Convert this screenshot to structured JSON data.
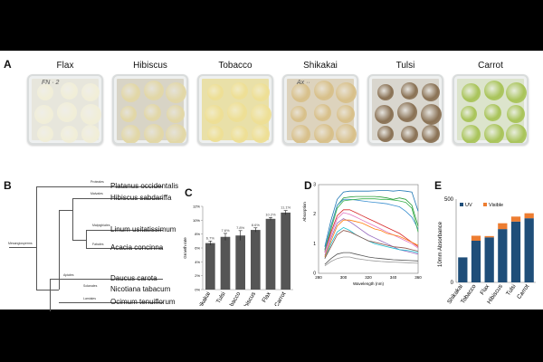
{
  "panel_labels": {
    "a": "A",
    "b": "B",
    "c": "C",
    "d": "D",
    "e": "E"
  },
  "panel_a": {
    "plants": [
      {
        "name": "Flax",
        "dish_color": "#e7e6dc",
        "callus_color": "#f1eed8"
      },
      {
        "name": "Hibiscus",
        "dish_color": "#d8d4c6",
        "callus_color": "#e2d7a6"
      },
      {
        "name": "Tobacco",
        "dish_color": "#e9e0a8",
        "callus_color": "#eedf95"
      },
      {
        "name": "Shikakai",
        "dish_color": "#ddd3bd",
        "callus_color": "#d8c08a"
      },
      {
        "name": "Tulsi",
        "dish_color": "#d9d6ce",
        "callus_color": "#8a7255"
      },
      {
        "name": "Carrot",
        "dish_color": "#dce4cc",
        "callus_color": "#a9c45a"
      }
    ],
    "dish_writing": [
      "FN · 2",
      "Ax ··"
    ]
  },
  "panel_b": {
    "clade_labels": [
      "Proteales",
      "Malvales",
      "Malpighiales",
      "Fabales",
      "Apiales",
      "Solanales",
      "Lamiales",
      "Mesangiosperms"
    ],
    "species": [
      "Platanus occidentalis",
      "Hibiscus sabdariffa",
      "Linum usitatissimum",
      "Acacia concinna",
      "Daucus carota",
      "Nicotiana tabacum",
      "Ocimum tenuiflorum"
    ]
  },
  "chart_data": [
    {
      "panel": "C",
      "type": "bar",
      "ylabel": "Growth rate",
      "categories": [
        "Shikakai",
        "Tulsi",
        "Tobacco",
        "Hibiscus",
        "Flax",
        "Carrot"
      ],
      "values": [
        6.7,
        7.6,
        7.8,
        8.6,
        10.2,
        11.1
      ],
      "errors": [
        0.3,
        0.5,
        0.7,
        0.3,
        0.2,
        0.3
      ],
      "data_labels": [
        "6.7%",
        "7.6%",
        "7.8%",
        "8.6%",
        "10.2%",
        "11.1%"
      ],
      "ylim": [
        0,
        12
      ],
      "yticks": [
        "0%",
        "2%",
        "4%",
        "6%",
        "8%",
        "10%",
        "12%"
      ],
      "bar_color": "#555555"
    },
    {
      "panel": "D",
      "type": "line",
      "xlabel": "Wavelength (nm)",
      "ylabel": "Absorption",
      "xlim": [
        280,
        360
      ],
      "ylim": [
        0,
        3
      ],
      "xticks": [
        "280",
        "300",
        "320",
        "340",
        "360"
      ],
      "yticks": [
        "0",
        "1",
        "2",
        "3"
      ],
      "x": [
        285,
        290,
        295,
        300,
        305,
        310,
        315,
        320,
        325,
        330,
        335,
        340,
        345,
        350,
        355,
        360
      ],
      "series": [
        {
          "color": "#1f77b4",
          "values": [
            0.9,
            1.8,
            2.5,
            2.75,
            2.78,
            2.78,
            2.78,
            2.78,
            2.79,
            2.8,
            2.8,
            2.78,
            2.8,
            2.78,
            2.75,
            2.1
          ]
        },
        {
          "color": "#2a9d3a",
          "values": [
            0.8,
            1.6,
            2.3,
            2.55,
            2.58,
            2.6,
            2.6,
            2.6,
            2.6,
            2.58,
            2.55,
            2.5,
            2.55,
            2.5,
            2.3,
            1.6
          ]
        },
        {
          "color": "#3a8fd0",
          "values": [
            0.8,
            1.6,
            2.3,
            2.5,
            2.5,
            2.48,
            2.45,
            2.42,
            2.4,
            2.38,
            2.35,
            2.3,
            2.25,
            2.1,
            1.9,
            1.5
          ]
        },
        {
          "color": "#36b04a",
          "values": [
            0.75,
            1.5,
            2.2,
            2.45,
            2.48,
            2.5,
            2.52,
            2.52,
            2.52,
            2.5,
            2.5,
            2.48,
            2.45,
            2.4,
            2.2,
            1.4
          ]
        },
        {
          "color": "#d62728",
          "values": [
            0.7,
            1.4,
            1.95,
            2.15,
            2.15,
            2.05,
            1.95,
            1.85,
            1.75,
            1.65,
            1.55,
            1.45,
            1.35,
            1.2,
            1.05,
            0.9
          ]
        },
        {
          "color": "#e377c2",
          "values": [
            0.7,
            1.3,
            1.85,
            2.05,
            2.0,
            1.9,
            1.8,
            1.7,
            1.6,
            1.5,
            1.4,
            1.3,
            1.2,
            1.1,
            1.0,
            0.85
          ]
        },
        {
          "color": "#9467bd",
          "values": [
            0.6,
            1.2,
            1.7,
            1.85,
            1.75,
            1.6,
            1.45,
            1.3,
            1.2,
            1.1,
            1.0,
            0.9,
            0.8,
            0.75,
            0.7,
            0.65
          ]
        },
        {
          "color": "#ff7f0e",
          "values": [
            0.55,
            1.1,
            1.6,
            1.8,
            1.8,
            1.75,
            1.7,
            1.6,
            1.5,
            1.45,
            1.35,
            1.3,
            1.25,
            1.15,
            1.05,
            0.95
          ]
        },
        {
          "color": "#17becf",
          "values": [
            0.5,
            1.0,
            1.4,
            1.55,
            1.45,
            1.3,
            1.2,
            1.1,
            1.0,
            0.95,
            0.9,
            0.85,
            0.8,
            0.78,
            0.75,
            0.7
          ]
        },
        {
          "color": "#8c564b",
          "values": [
            0.5,
            0.9,
            1.3,
            1.45,
            1.4,
            1.3,
            1.2,
            1.1,
            1.05,
            1.0,
            0.95,
            0.9,
            0.88,
            0.85,
            0.8,
            0.75
          ]
        },
        {
          "color": "#555555",
          "values": [
            0.3,
            0.5,
            0.65,
            0.7,
            0.7,
            0.65,
            0.6,
            0.55,
            0.52,
            0.5,
            0.48,
            0.46,
            0.45,
            0.44,
            0.43,
            0.42
          ]
        },
        {
          "color": "#999999",
          "values": [
            0.25,
            0.4,
            0.5,
            0.55,
            0.55,
            0.5,
            0.47,
            0.44,
            0.42,
            0.4,
            0.39,
            0.38,
            0.37,
            0.36,
            0.35,
            0.34
          ]
        }
      ]
    },
    {
      "panel": "E",
      "type": "bar",
      "stacked": true,
      "ylabel": "10mm Absorbance",
      "categories": [
        "Shikakai",
        "Tobacco",
        "Flax",
        "Hibiscus",
        "Tulsi",
        "Carrot"
      ],
      "yticks": [
        "0",
        "500"
      ],
      "ylim": [
        0,
        500
      ],
      "legend": [
        "UV",
        "Visible"
      ],
      "series": [
        {
          "name": "UV",
          "color": "#1f4e79",
          "values": [
            150,
            250,
            270,
            320,
            365,
            385
          ]
        },
        {
          "name": "Visible",
          "color": "#ed7d31",
          "values": [
            0,
            30,
            8,
            35,
            30,
            30
          ]
        }
      ]
    }
  ]
}
